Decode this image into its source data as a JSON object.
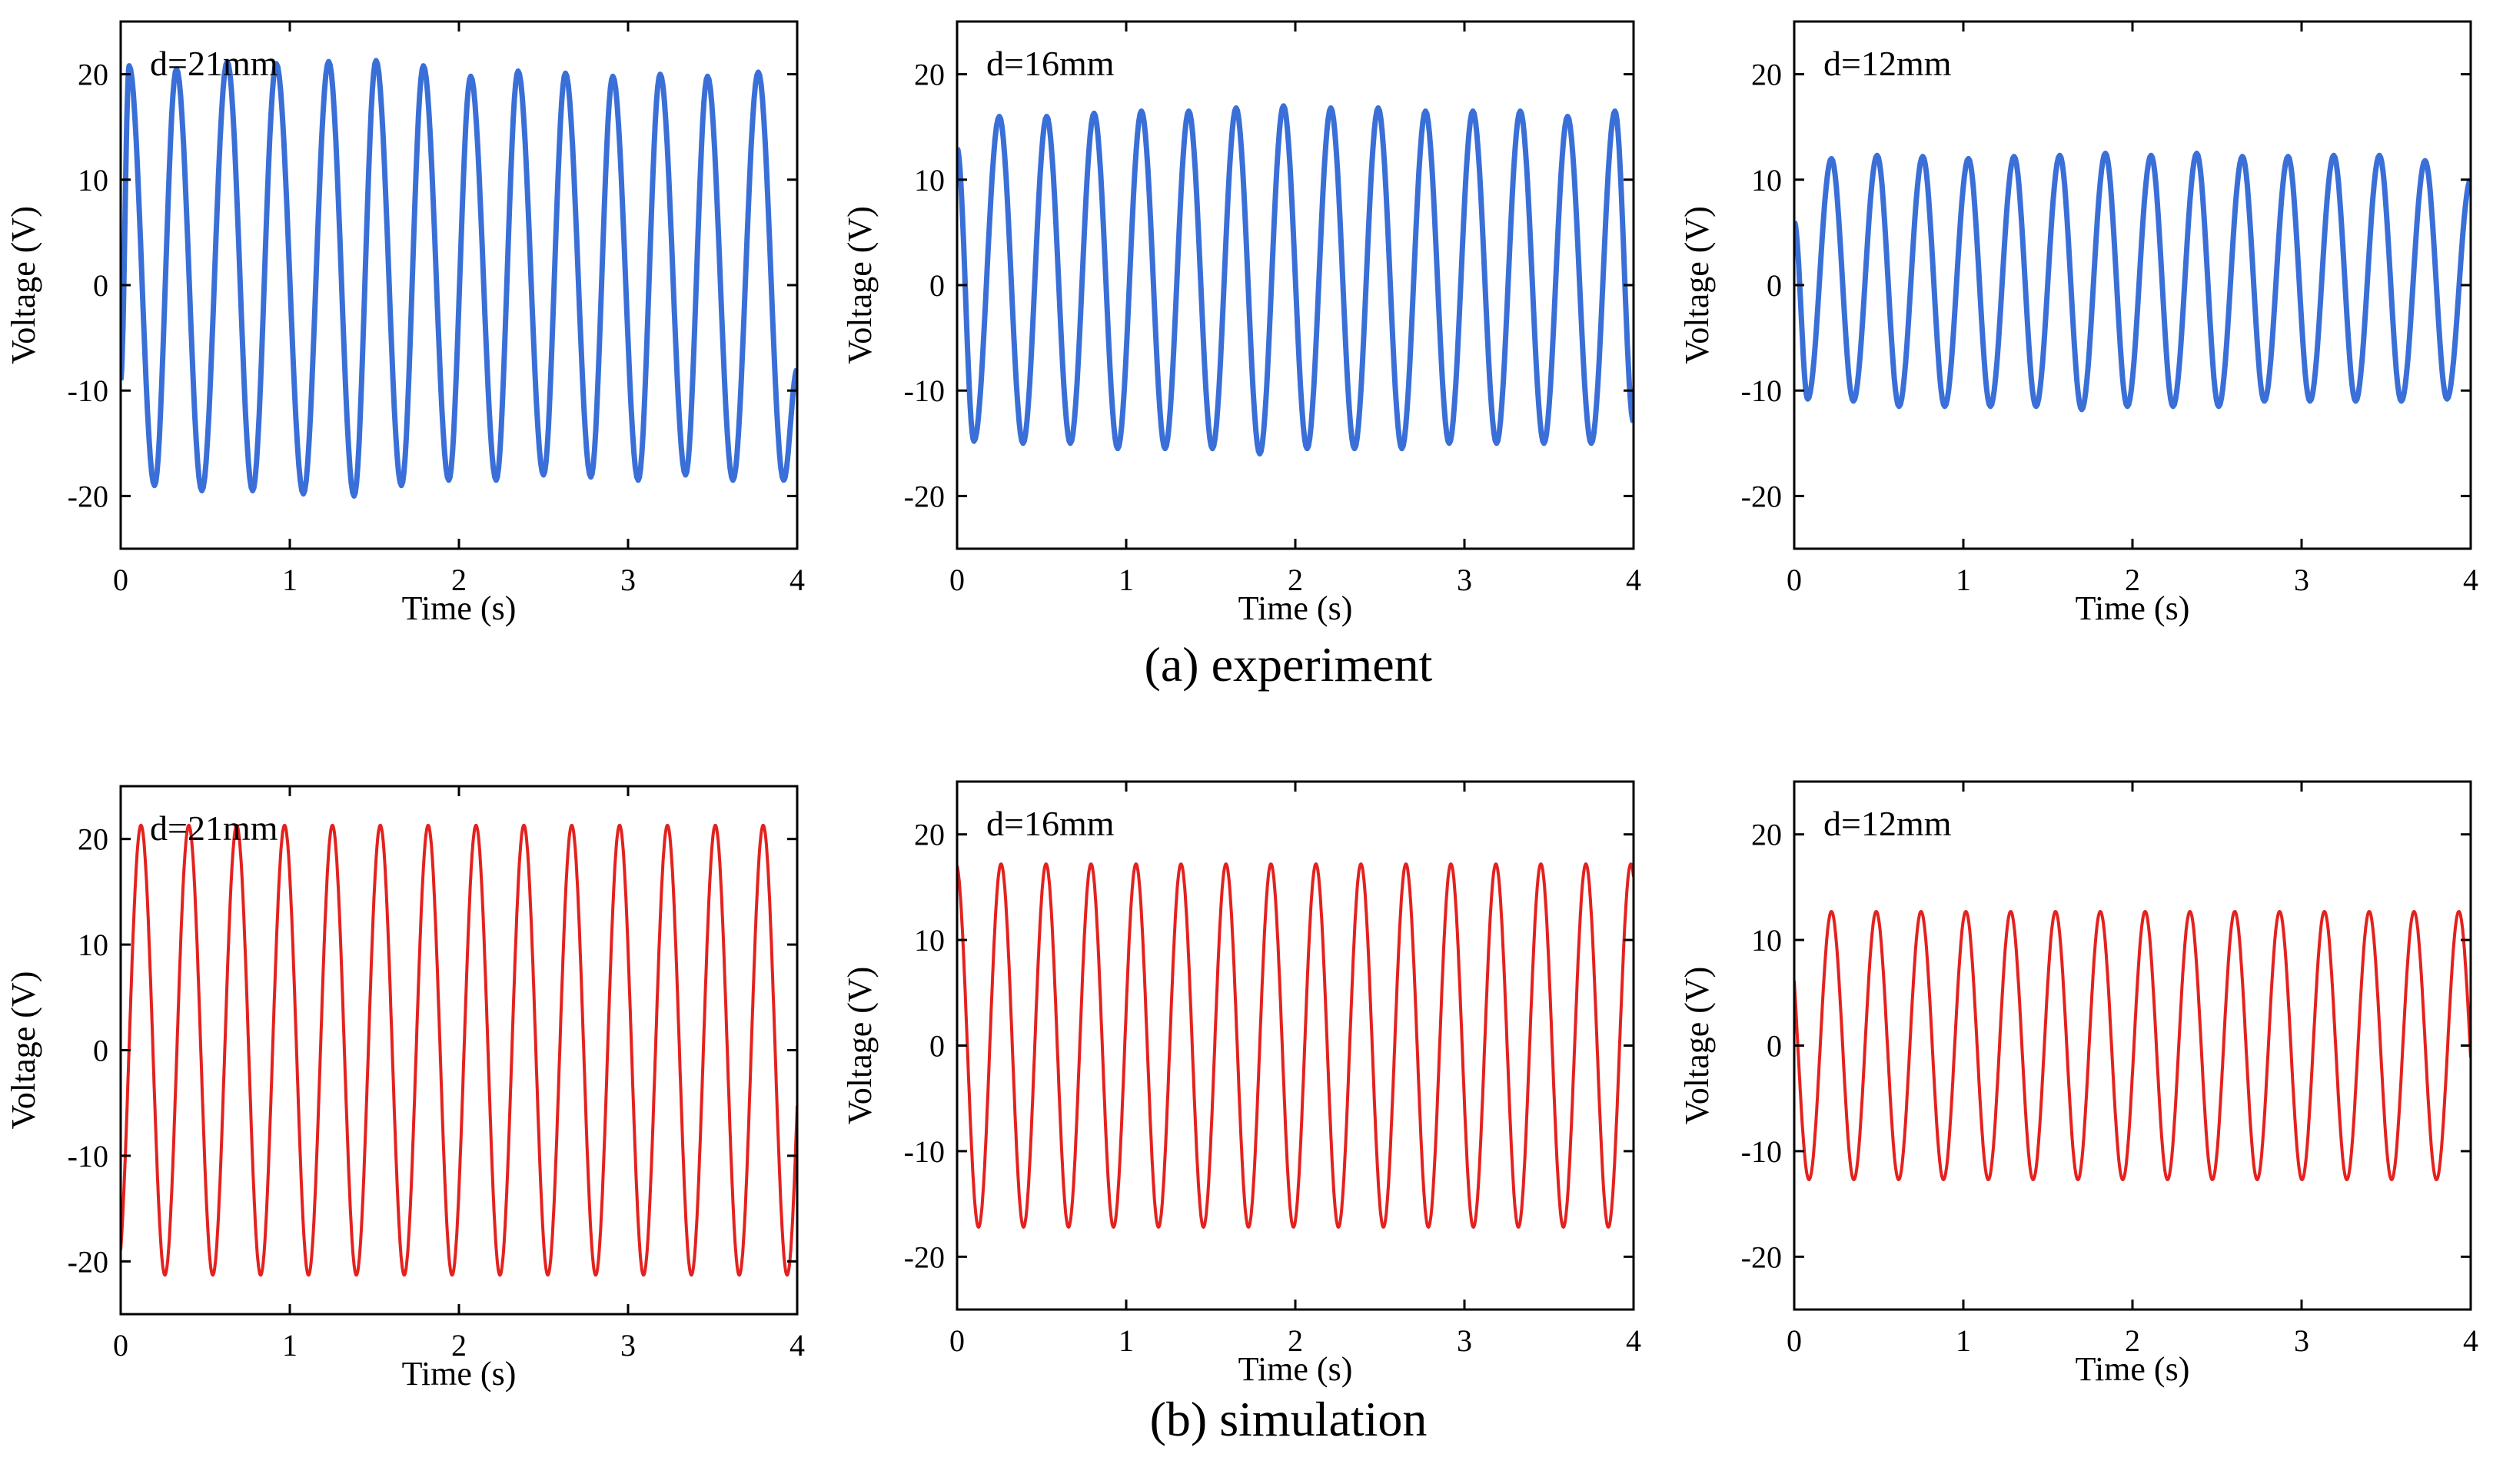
{
  "figure": {
    "captions": [
      "(a) experiment",
      "(b) simulation"
    ]
  },
  "chart_data": [
    {
      "type": "line",
      "row": "experiment",
      "annotation": "d=21mm",
      "xlabel": "Time (s)",
      "ylabel": "Voltage (V)",
      "xlim": [
        0,
        4
      ],
      "ylim": [
        -25,
        25
      ],
      "xticks": [
        0,
        1,
        2,
        3,
        4
      ],
      "yticks": [
        -20,
        -10,
        0,
        10,
        20
      ],
      "series": [
        {
          "name": "experiment",
          "color": "#3a6fd8",
          "x": [
            0,
            0.05,
            0.2,
            0.33,
            0.48,
            0.63,
            0.78,
            0.92,
            1.08,
            1.23,
            1.38,
            1.51,
            1.66,
            1.79,
            1.94,
            2.07,
            2.22,
            2.35,
            2.5,
            2.63,
            2.78,
            2.91,
            3.06,
            3.19,
            3.34,
            3.47,
            3.62,
            3.77,
            3.92,
            4
          ],
          "values": [
            -9,
            20.8,
            -19,
            20.5,
            -19.5,
            21.2,
            -19.5,
            21.0,
            -19.8,
            21.2,
            -20.0,
            21.3,
            -19,
            20.8,
            -18.5,
            19.8,
            -18.5,
            20.3,
            -18,
            20.1,
            -18.2,
            19.8,
            -18.5,
            20,
            -18,
            19.8,
            -18.5,
            20.2,
            -18.5,
            -8
          ]
        }
      ]
    },
    {
      "type": "line",
      "row": "experiment",
      "annotation": "d=16mm",
      "xlabel": "Time (s)",
      "ylabel": "Voltage (V)",
      "xlim": [
        0,
        4
      ],
      "ylim": [
        -25,
        25
      ],
      "xticks": [
        0,
        1,
        2,
        3,
        4
      ],
      "yticks": [
        -20,
        -10,
        0,
        10,
        20
      ],
      "series": [
        {
          "name": "experiment",
          "color": "#3a6fd8",
          "x": [
            0,
            0.1,
            0.25,
            0.39,
            0.53,
            0.67,
            0.81,
            0.95,
            1.09,
            1.23,
            1.37,
            1.51,
            1.65,
            1.79,
            1.93,
            2.07,
            2.21,
            2.35,
            2.49,
            2.63,
            2.77,
            2.91,
            3.05,
            3.19,
            3.33,
            3.47,
            3.61,
            3.75,
            3.89,
            4
          ],
          "values": [
            13,
            -14.8,
            16,
            -15,
            16,
            -15,
            16.3,
            -15.5,
            16.5,
            -15.5,
            16.5,
            -15.5,
            16.8,
            -16,
            17,
            -15.5,
            16.8,
            -15.5,
            16.8,
            -15.5,
            16.5,
            -15,
            16.5,
            -15,
            16.5,
            -15,
            16,
            -15,
            16.5,
            -13
          ]
        }
      ]
    },
    {
      "type": "line",
      "row": "experiment",
      "annotation": "d=12mm",
      "xlabel": "Time (s)",
      "ylabel": "Voltage (V)",
      "xlim": [
        0,
        4
      ],
      "ylim": [
        -25,
        25
      ],
      "xticks": [
        0,
        1,
        2,
        3,
        4
      ],
      "yticks": [
        -20,
        -10,
        0,
        10,
        20
      ],
      "series": [
        {
          "name": "experiment",
          "color": "#3a6fd8",
          "x": [
            0,
            0.08,
            0.22,
            0.35,
            0.49,
            0.62,
            0.76,
            0.89,
            1.03,
            1.16,
            1.3,
            1.43,
            1.57,
            1.7,
            1.84,
            1.97,
            2.11,
            2.24,
            2.38,
            2.51,
            2.65,
            2.78,
            2.92,
            3.05,
            3.19,
            3.32,
            3.46,
            3.59,
            3.73,
            3.86,
            4
          ],
          "values": [
            6,
            -10.8,
            12,
            -11,
            12.3,
            -11.5,
            12.2,
            -11.5,
            12,
            -11.5,
            12.2,
            -11.5,
            12.3,
            -11.8,
            12.5,
            -11.5,
            12.3,
            -11.5,
            12.5,
            -11.5,
            12.2,
            -11,
            12.2,
            -11,
            12.3,
            -11,
            12.3,
            -11,
            11.8,
            -10.8,
            10
          ]
        }
      ]
    },
    {
      "type": "line",
      "row": "simulation",
      "annotation": "d=21mm",
      "xlabel": "Time (s)",
      "ylabel": "Voltage (V)",
      "xlim": [
        0,
        4
      ],
      "ylim": [
        -25,
        25
      ],
      "xticks": [
        0,
        1,
        2,
        3,
        4
      ],
      "yticks": [
        -20,
        -10,
        0,
        10,
        20
      ],
      "series": [
        {
          "name": "simulation",
          "color": "#e3221f",
          "model": "sine",
          "amplitude": 21.3,
          "period": 0.283,
          "first_peak_time": 0.12,
          "t_start": 0,
          "t_end": 4
        }
      ]
    },
    {
      "type": "line",
      "row": "simulation",
      "annotation": "d=16mm",
      "xlabel": "Time (s)",
      "ylabel": "Voltage (V)",
      "xlim": [
        0,
        4
      ],
      "ylim": [
        -25,
        25
      ],
      "xticks": [
        0,
        1,
        2,
        3,
        4
      ],
      "yticks": [
        -20,
        -10,
        0,
        10,
        20
      ],
      "series": [
        {
          "name": "simulation",
          "color": "#e3221f",
          "model": "sine",
          "amplitude": 17.2,
          "period": 0.266,
          "first_peak_time": 0.26,
          "t_start": 0,
          "t_end": 4
        }
      ]
    },
    {
      "type": "line",
      "row": "simulation",
      "annotation": "d=12mm",
      "xlabel": "Time (s)",
      "ylabel": "Voltage (V)",
      "xlim": [
        0,
        4
      ],
      "ylim": [
        -25,
        25
      ],
      "xticks": [
        0,
        1,
        2,
        3,
        4
      ],
      "yticks": [
        -20,
        -10,
        0,
        10,
        20
      ],
      "series": [
        {
          "name": "simulation",
          "color": "#e3221f",
          "model": "sine",
          "amplitude": 12.7,
          "period": 0.265,
          "first_peak_time": 0.22,
          "t_start": 0,
          "t_end": 4
        }
      ]
    }
  ]
}
